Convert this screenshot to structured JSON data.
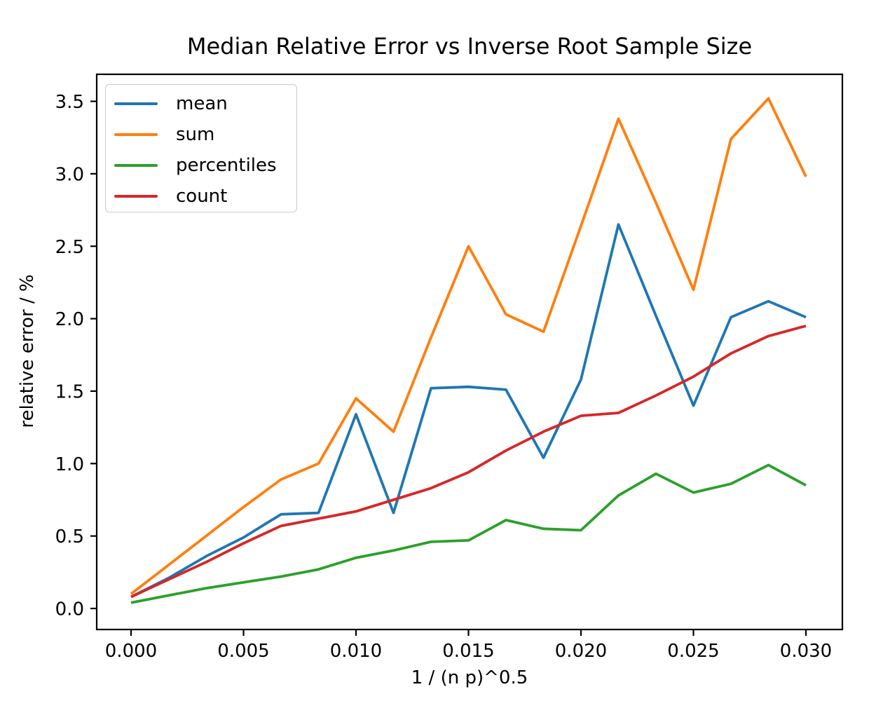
{
  "title": "Median Relative Error vs Inverse Root Sample Size",
  "x_axis": {
    "label": "1 / (n p)^0.5",
    "ticks": [
      {
        "label": "0.000",
        "value": 0.0
      },
      {
        "label": "0.005",
        "value": 0.005
      },
      {
        "label": "0.010",
        "value": 0.01
      },
      {
        "label": "0.015",
        "value": 0.015
      },
      {
        "label": "0.020",
        "value": 0.02
      },
      {
        "label": "0.025",
        "value": 0.025
      },
      {
        "label": "0.030",
        "value": 0.03
      }
    ]
  },
  "y_axis": {
    "label": "relative error / %",
    "ticks": [
      {
        "label": "0.0",
        "value": 0.0
      },
      {
        "label": "0.5",
        "value": 0.5
      },
      {
        "label": "1.0",
        "value": 1.0
      },
      {
        "label": "1.5",
        "value": 1.5
      },
      {
        "label": "2.0",
        "value": 2.0
      },
      {
        "label": "2.5",
        "value": 2.5
      },
      {
        "label": "3.0",
        "value": 3.0
      },
      {
        "label": "3.5",
        "value": 3.5
      }
    ]
  },
  "legend": {
    "position": "upper left",
    "items": [
      {
        "label": "mean",
        "color": "#1f77b4"
      },
      {
        "label": "sum",
        "color": "#ff7f0e"
      },
      {
        "label": "percentiles",
        "color": "#2ca02c"
      },
      {
        "label": "count",
        "color": "#d62728"
      }
    ]
  },
  "chart_data": {
    "type": "line",
    "title": "Median Relative Error vs Inverse Root Sample Size",
    "xlabel": "1 / (n p)^0.5",
    "ylabel": "relative error / %",
    "grid": false,
    "legend_position": "upper left",
    "xlim": [
      -0.0015264,
      0.0316199
    ],
    "ylim": [
      -0.1451,
      3.6865
    ],
    "x": [
      0.0,
      0.0016667,
      0.0033333,
      0.005,
      0.0066667,
      0.0083333,
      0.01,
      0.0116667,
      0.0133333,
      0.015,
      0.0166667,
      0.0183333,
      0.02,
      0.0216667,
      0.0233333,
      0.025,
      0.0266667,
      0.0283333,
      0.03
    ],
    "series": [
      {
        "name": "mean",
        "color": "#1f77b4",
        "values": [
          0.08,
          0.21,
          0.36,
          0.49,
          0.65,
          0.66,
          1.34,
          0.66,
          1.52,
          1.53,
          1.51,
          1.04,
          1.58,
          2.65,
          2.02,
          1.4,
          2.01,
          2.12,
          2.01
        ]
      },
      {
        "name": "sum",
        "color": "#ff7f0e",
        "values": [
          0.1,
          0.3,
          0.5,
          0.7,
          0.89,
          1.0,
          1.45,
          1.22,
          1.87,
          2.5,
          2.03,
          1.91,
          2.64,
          3.38,
          2.8,
          2.2,
          3.24,
          3.52,
          2.98
        ]
      },
      {
        "name": "percentiles",
        "color": "#2ca02c",
        "values": [
          0.04,
          0.09,
          0.14,
          0.18,
          0.22,
          0.27,
          0.35,
          0.4,
          0.46,
          0.47,
          0.61,
          0.55,
          0.54,
          0.78,
          0.93,
          0.8,
          0.86,
          0.99,
          0.85
        ]
      },
      {
        "name": "count",
        "color": "#d62728",
        "values": [
          0.08,
          0.2,
          0.32,
          0.45,
          0.57,
          0.62,
          0.67,
          0.75,
          0.83,
          0.94,
          1.09,
          1.22,
          1.33,
          1.35,
          1.47,
          1.6,
          1.76,
          1.88,
          1.95
        ]
      }
    ]
  }
}
